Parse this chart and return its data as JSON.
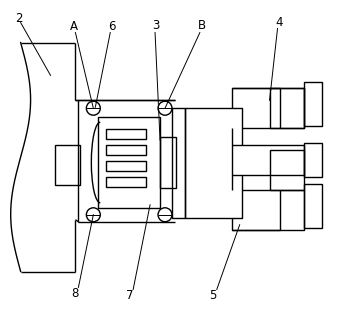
{
  "bg_color": "#ffffff",
  "line_color": "#000000",
  "lw": 1.0,
  "tlw": 0.7,
  "figsize": [
    3.37,
    3.19
  ],
  "dpi": 100,
  "label_fs": 8.5
}
